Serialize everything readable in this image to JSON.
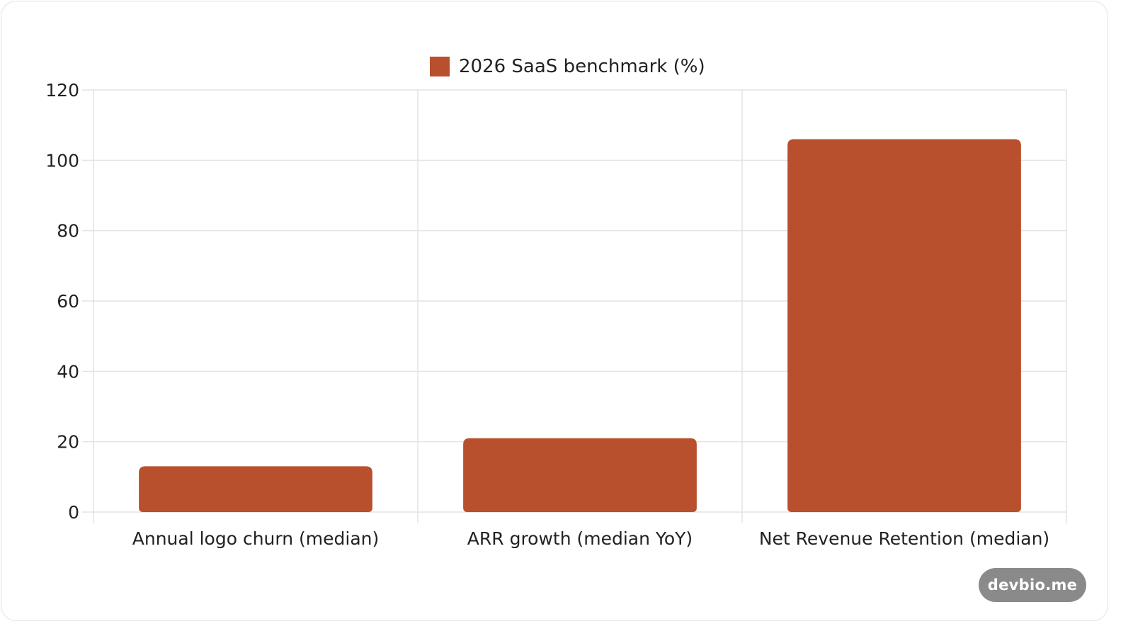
{
  "watermark": "devbio.me",
  "colors": {
    "bar": "#b9502d",
    "grid": "#e4e4e4",
    "text": "#222222"
  },
  "chart_data": {
    "type": "bar",
    "categories": [
      "Annual logo churn (median)",
      "ARR growth (median YoY)",
      "Net Revenue Retention (median)"
    ],
    "series": [
      {
        "name": "2026 SaaS benchmark (%)",
        "values": [
          13,
          21,
          106
        ]
      }
    ],
    "ylim": [
      0,
      120
    ],
    "yticks": [
      0,
      20,
      40,
      60,
      80,
      100,
      120
    ],
    "legend": "top-center",
    "grid": true
  }
}
